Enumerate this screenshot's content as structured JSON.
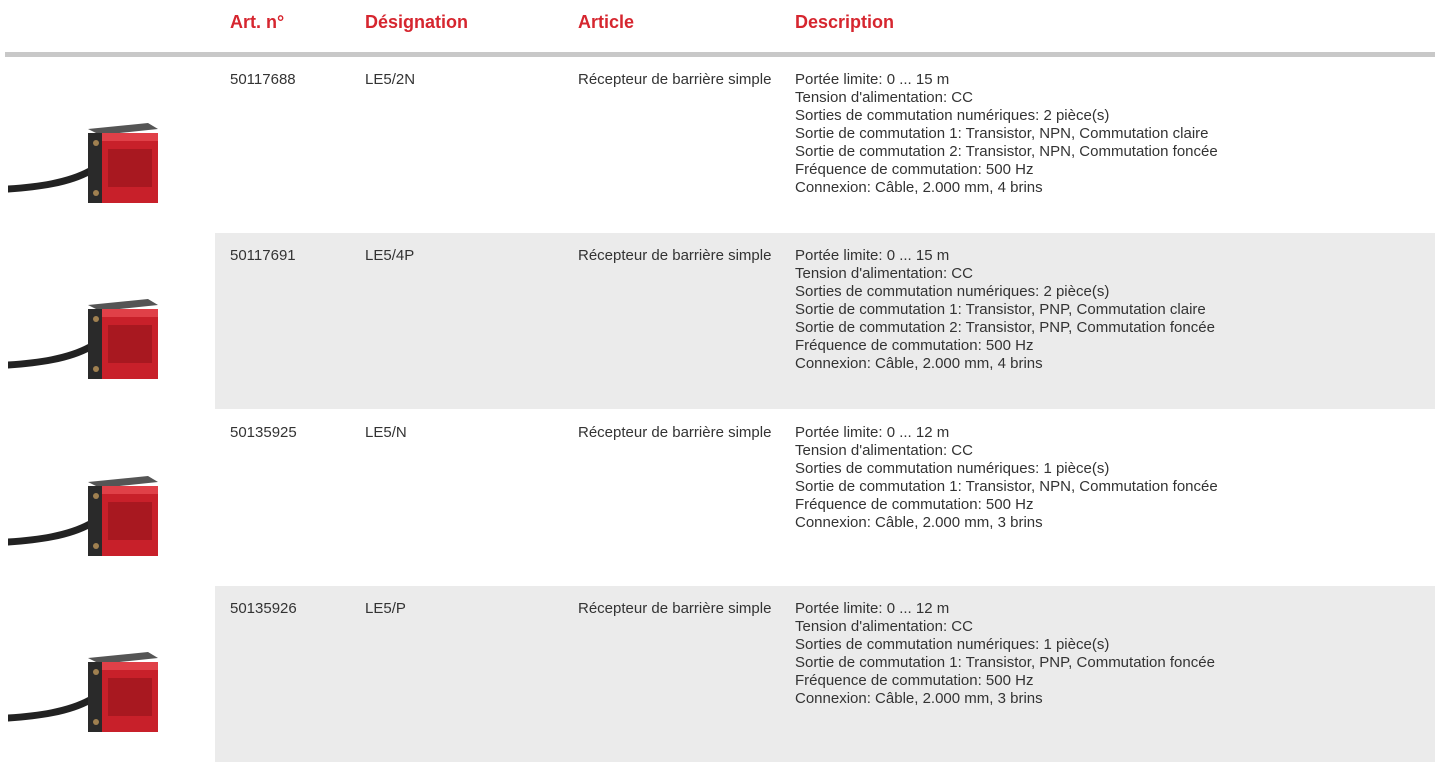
{
  "table": {
    "headers": [
      "Art. n°",
      "Désignation",
      "Article",
      "Description"
    ],
    "rows": [
      {
        "art_no": "50117688",
        "designation": "LE5/2N",
        "article": "Récepteur de barrière simple",
        "description": [
          "Portée limite: 0 ... 15 m",
          "Tension d'alimentation: CC",
          "Sorties de commutation numériques: 2 pièce(s)",
          "Sortie de commutation 1: Transistor, NPN, Commutation claire",
          "Sortie de commutation 2: Transistor, NPN, Commutation foncée",
          "Fréquence de commutation: 500 Hz",
          "Connexion: Câble, 2.000 mm, 4 brins"
        ]
      },
      {
        "art_no": "50117691",
        "designation": "LE5/4P",
        "article": "Récepteur de barrière simple",
        "description": [
          "Portée limite: 0 ... 15 m",
          "Tension d'alimentation: CC",
          "Sorties de commutation numériques: 2 pièce(s)",
          "Sortie de commutation 1: Transistor, PNP, Commutation claire",
          "Sortie de commutation 2: Transistor, PNP, Commutation foncée",
          "Fréquence de commutation: 500 Hz",
          "Connexion: Câble, 2.000 mm, 4 brins"
        ]
      },
      {
        "art_no": "50135925",
        "designation": "LE5/N",
        "article": "Récepteur de barrière simple",
        "description": [
          "Portée limite: 0 ... 12 m",
          "Tension d'alimentation: CC",
          "Sorties de commutation numériques: 1 pièce(s)",
          "Sortie de commutation 1: Transistor, NPN, Commutation foncée",
          "Fréquence de commutation: 500 Hz",
          "Connexion: Câble, 2.000 mm, 3 brins"
        ]
      },
      {
        "art_no": "50135926",
        "designation": "LE5/P",
        "article": "Récepteur de barrière simple",
        "description": [
          "Portée limite: 0 ... 12 m",
          "Tension d'alimentation: CC",
          "Sorties de commutation numériques: 1 pièce(s)",
          "Sortie de commutation 1: Transistor, PNP, Commutation foncée",
          "Fréquence de commutation: 500 Hz",
          "Connexion: Câble, 2.000 mm, 3 brins"
        ]
      }
    ]
  }
}
